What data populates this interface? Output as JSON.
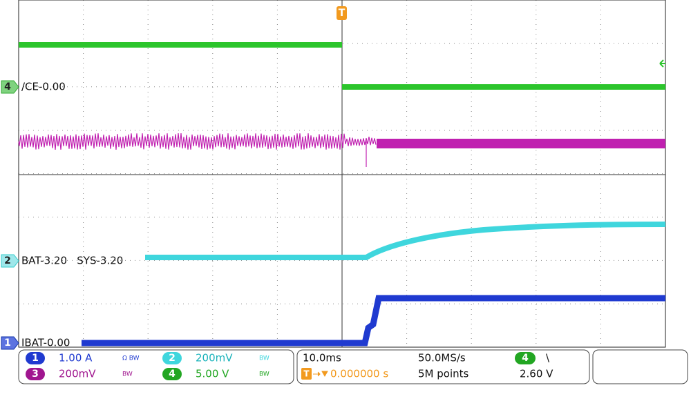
{
  "markers": [
    {
      "channel": "4",
      "label": "/CE-0.00"
    },
    {
      "channel": "2",
      "label": "BAT-3.20   SYS-3.20"
    },
    {
      "channel": "1",
      "label": "IBAT-0.00"
    }
  ],
  "trigger_marker": "T",
  "channels": [
    {
      "number": "1",
      "scale": "1.00 A",
      "flags": "Ω BW"
    },
    {
      "number": "2",
      "scale": "200mV",
      "flags": "BW"
    },
    {
      "number": "3",
      "scale": "200mV",
      "flags": "BW"
    },
    {
      "number": "4",
      "scale": "5.00 V",
      "flags": "BW"
    }
  ],
  "acquisition": {
    "timebase": "10.0ms",
    "sample_rate": "50.0MS/s",
    "trigger_position": "0.000000 s",
    "record_length": "5M points"
  },
  "trigger": {
    "source": "4",
    "slope": "\\",
    "level": "2.60 V"
  }
}
